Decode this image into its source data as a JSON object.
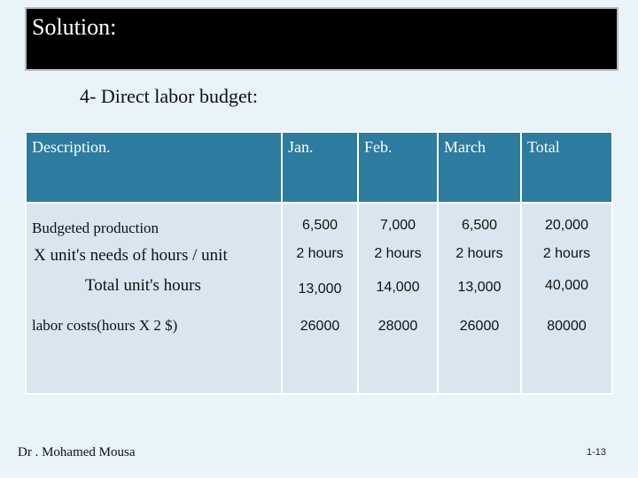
{
  "title": "Solution:",
  "subtitle": "4- Direct labor budget:",
  "table": {
    "headers": [
      "Description.",
      "Jan.",
      "Feb.",
      "March",
      "Total"
    ],
    "rows": [
      {
        "label": "Budgeted production",
        "values": [
          "6,500",
          "7,000",
          "6,500",
          "20,000"
        ]
      },
      {
        "label": "X unit's needs of hours / unit",
        "values": [
          "2 hours",
          "2 hours",
          "2 hours",
          "2 hours"
        ]
      },
      {
        "label": "Total unit's hours",
        "values": [
          "13,000",
          "14,000",
          "13,000",
          "40,000"
        ]
      },
      {
        "label": "labor costs(hours X 2 $)",
        "values": [
          "26000",
          "28000",
          "26000",
          "80000"
        ]
      }
    ]
  },
  "footer": {
    "author": "Dr . Mohamed Mousa",
    "page": "1-13"
  }
}
